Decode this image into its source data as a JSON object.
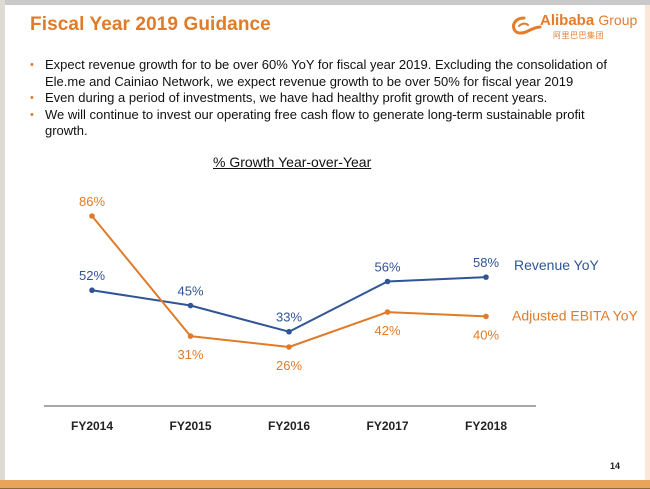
{
  "slide": {
    "title": "Fiscal Year 2019 Guidance",
    "logo": {
      "brand": "Alibaba",
      "suffix": "Group",
      "chinese": "阿里巴巴集团",
      "icon": "alibaba-logo-icon"
    },
    "bullets": [
      "Expect revenue growth for to be over 60% YoY for fiscal year 2019. Excluding the consolidation of Ele.me and Cainiao Network, we expect revenue growth to be over 50% for fiscal year 2019",
      "Even during a period of investments, we have had healthy profit growth of recent years.",
      "We will continue to invest our operating free cash flow to generate long-term sustainable profit growth."
    ],
    "bullet_glyph": "•",
    "page_number": "14",
    "colors": {
      "accent": "#e07b29",
      "revenue": "#2f5597",
      "ebita": "#e07b29",
      "bottom_bar": "#eaa35a"
    }
  },
  "chart_data": {
    "type": "line",
    "title": "% Growth Year-over-Year",
    "xlabel": "",
    "ylabel": "",
    "categories": [
      "FY2014",
      "FY2015",
      "FY2016",
      "FY2017",
      "FY2018"
    ],
    "series": [
      {
        "name": "Revenue YoY",
        "values": [
          52,
          45,
          33,
          56,
          58
        ],
        "labels": [
          "52%",
          "45%",
          "33%",
          "56%",
          "58%"
        ],
        "color": "#2f5597"
      },
      {
        "name": "Adjusted EBITA YoY",
        "values": [
          86,
          31,
          26,
          42,
          40
        ],
        "labels": [
          "86%",
          "31%",
          "26%",
          "42%",
          "40%"
        ],
        "color": "#e07b29"
      }
    ],
    "ylim": [
      0,
      90
    ],
    "grid": false,
    "legend": "right-inline",
    "label_positions": {
      "Revenue YoY": [
        "above",
        "above",
        "above",
        "above",
        "above"
      ],
      "Adjusted EBITA YoY": [
        "above",
        "below",
        "below",
        "below",
        "below"
      ]
    }
  }
}
